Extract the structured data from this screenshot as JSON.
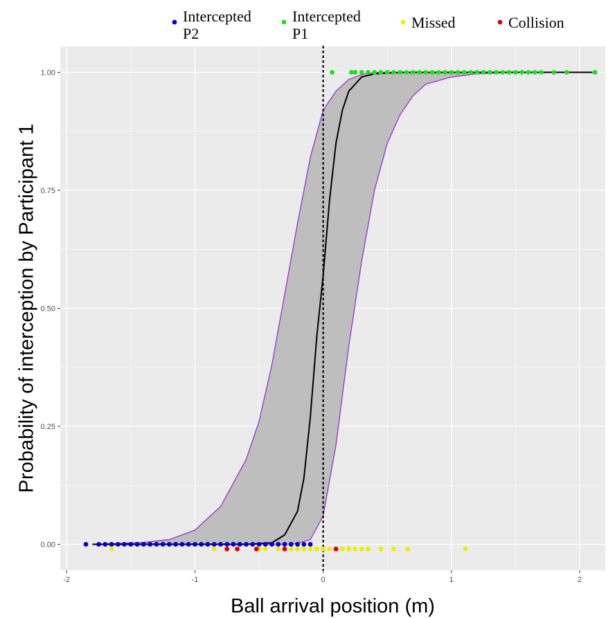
{
  "chart_data": {
    "type": "scatter",
    "title": "",
    "xlabel": "Ball arrival position (m)",
    "ylabel": "Probability of interception by Participant 1",
    "xlim": [
      -2.05,
      2.2
    ],
    "ylim": [
      -0.055,
      1.055
    ],
    "x_ticks": [
      -2,
      -1,
      0,
      1,
      2
    ],
    "x_tick_labels": [
      "-2",
      "-1",
      "0",
      "1",
      "2"
    ],
    "y_ticks": [
      0,
      0.25,
      0.5,
      0.75,
      1
    ],
    "y_tick_labels": [
      "0.00",
      "0.25",
      "0.50",
      "0.75",
      "1.00"
    ],
    "grid": true,
    "background": "#ebebeb",
    "legend_position": "top",
    "reference_line": {
      "x": 0,
      "style": "dotted",
      "color": "#000000"
    },
    "fit": {
      "name": "logistic fit",
      "color": "#000000",
      "x": [
        -1.8,
        -1.0,
        -0.6,
        -0.4,
        -0.3,
        -0.2,
        -0.15,
        -0.1,
        -0.05,
        0.0,
        0.05,
        0.1,
        0.15,
        0.2,
        0.3,
        0.4,
        0.6,
        0.8,
        1.0,
        1.5,
        2.1
      ],
      "y": [
        0.0,
        0.0,
        0.0,
        0.003,
        0.02,
        0.07,
        0.14,
        0.27,
        0.44,
        0.57,
        0.73,
        0.85,
        0.92,
        0.96,
        0.99,
        0.997,
        1.0,
        1.0,
        1.0,
        1.0,
        1.0
      ]
    },
    "confidence_band": {
      "fill": "#bebebe",
      "edge_color": "#9933cc",
      "x": [
        -1.8,
        -1.4,
        -1.2,
        -1.0,
        -0.8,
        -0.6,
        -0.5,
        -0.4,
        -0.3,
        -0.2,
        -0.1,
        0.0,
        0.1,
        0.2,
        0.3,
        0.4,
        0.5,
        0.6,
        0.7,
        0.8,
        1.0,
        1.2,
        1.5,
        2.1
      ],
      "lower": [
        0.0,
        0.0,
        0.0,
        0.0,
        0.0,
        0.0,
        0.0,
        0.0,
        0.0,
        0.002,
        0.01,
        0.06,
        0.21,
        0.42,
        0.6,
        0.75,
        0.85,
        0.91,
        0.95,
        0.975,
        0.99,
        0.997,
        1.0,
        1.0
      ],
      "upper": [
        0.0,
        0.004,
        0.01,
        0.03,
        0.08,
        0.18,
        0.26,
        0.38,
        0.53,
        0.68,
        0.82,
        0.92,
        0.96,
        0.985,
        0.995,
        1.0,
        1.0,
        1.0,
        1.0,
        1.0,
        1.0,
        1.0,
        1.0,
        1.0
      ]
    },
    "series": [
      {
        "name": "Intercepted P2",
        "legend_label_lines": [
          "Intercepted",
          "P2"
        ],
        "color": "#0000cc",
        "x": [
          -1.85,
          -1.75,
          -1.7,
          -1.65,
          -1.6,
          -1.55,
          -1.5,
          -1.45,
          -1.4,
          -1.35,
          -1.3,
          -1.25,
          -1.2,
          -1.15,
          -1.1,
          -1.05,
          -1.0,
          -0.95,
          -0.9,
          -0.85,
          -0.8,
          -0.75,
          -0.7,
          -0.65,
          -0.6,
          -0.55,
          -0.5,
          -0.45,
          -0.4,
          -0.35,
          -0.3,
          -0.25,
          -0.2,
          -0.15,
          -0.1
        ],
        "y": [
          0,
          0,
          0,
          0,
          0,
          0,
          0,
          0,
          0,
          0,
          0,
          0,
          0,
          0,
          0,
          0,
          0,
          0,
          0,
          0,
          0,
          0,
          0,
          0,
          0,
          0,
          0,
          0,
          0,
          0,
          0,
          0,
          0,
          0,
          0
        ]
      },
      {
        "name": "Intercepted P1",
        "legend_label_lines": [
          "Intercepted",
          "P1"
        ],
        "color": "#22dd22",
        "x": [
          0.07,
          0.22,
          0.25,
          0.3,
          0.35,
          0.4,
          0.45,
          0.5,
          0.55,
          0.6,
          0.65,
          0.7,
          0.75,
          0.8,
          0.85,
          0.9,
          0.95,
          1.0,
          1.05,
          1.1,
          1.15,
          1.2,
          1.25,
          1.3,
          1.35,
          1.4,
          1.45,
          1.5,
          1.55,
          1.6,
          1.65,
          1.7,
          1.8,
          1.9,
          2.12
        ],
        "y": [
          1,
          1,
          1,
          1,
          1,
          1,
          1,
          1,
          1,
          1,
          1,
          1,
          1,
          1,
          1,
          1,
          1,
          1,
          1,
          1,
          1,
          1,
          1,
          1,
          1,
          1,
          1,
          1,
          1,
          1,
          1,
          1,
          1,
          1,
          1
        ]
      },
      {
        "name": "Missed",
        "legend_label_lines": [
          "Missed"
        ],
        "color": "#eeee00",
        "x": [
          -1.65,
          -0.85,
          -0.5,
          -0.45,
          -0.35,
          -0.3,
          -0.25,
          -0.2,
          -0.15,
          -0.1,
          -0.05,
          0.0,
          0.05,
          0.1,
          0.15,
          0.2,
          0.25,
          0.3,
          0.35,
          0.45,
          0.55,
          0.66,
          1.11
        ],
        "y": [
          -0.01,
          -0.01,
          -0.01,
          -0.01,
          -0.01,
          -0.01,
          -0.01,
          -0.01,
          -0.01,
          -0.01,
          -0.01,
          -0.01,
          -0.01,
          -0.01,
          -0.01,
          -0.01,
          -0.01,
          -0.01,
          -0.01,
          -0.01,
          -0.01,
          -0.01,
          -0.01
        ]
      },
      {
        "name": "Collision",
        "legend_label_lines": [
          "Collision"
        ],
        "color": "#dd0000",
        "x": [
          -0.75,
          -0.67,
          -0.52,
          -0.3,
          0.1
        ],
        "y": [
          -0.01,
          -0.01,
          -0.01,
          -0.01,
          -0.01
        ]
      }
    ]
  }
}
